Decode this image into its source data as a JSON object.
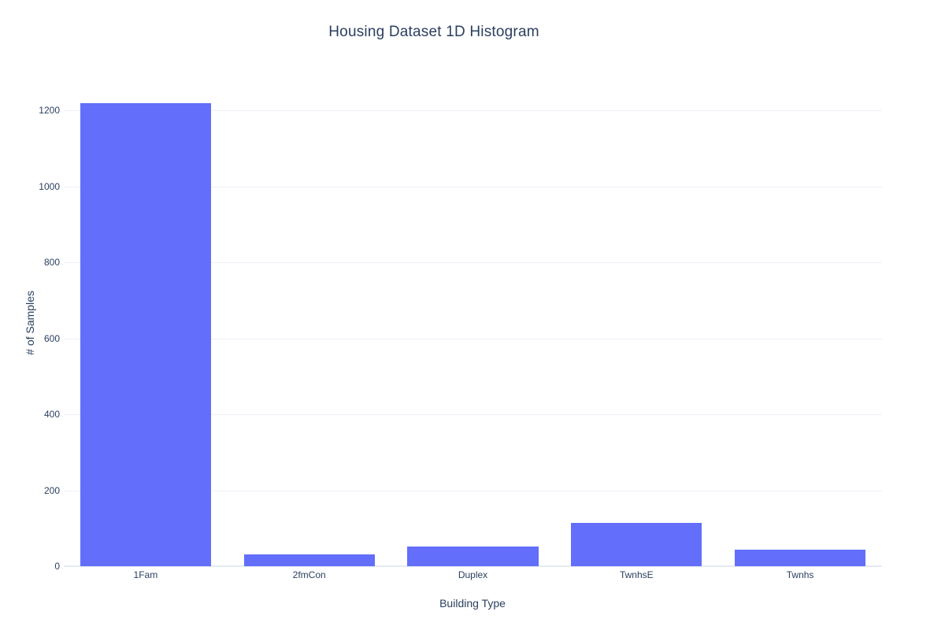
{
  "page": {
    "title": "Housing Dataset 1D Histogram"
  },
  "chart_data": {
    "type": "bar",
    "title": "Housing Dataset 1D Histogram",
    "categories": [
      "1Fam",
      "2fmCon",
      "Duplex",
      "TwnhsE",
      "Twnhs"
    ],
    "values": [
      1220,
      31,
      52,
      114,
      43
    ],
    "xlabel": "Building Type",
    "ylabel": "# of Samples",
    "yticks": [
      0,
      200,
      400,
      600,
      800,
      1000,
      1200
    ],
    "ylim": [
      0,
      1284
    ],
    "grid": true,
    "legend": "none",
    "bar_fraction": 0.8,
    "colors": {
      "bar": "#636EFA",
      "grid": "#ecf1f8",
      "zeroline": "#e4eaf2",
      "text": "#2a3f5f",
      "background": "#ffffff"
    }
  }
}
